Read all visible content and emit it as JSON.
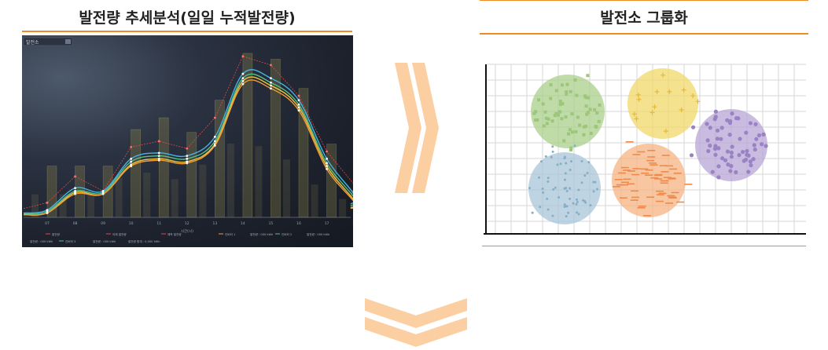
{
  "left_panel": {
    "title": "발전량 추세분석(일일 누적발전량)",
    "dashboard": {
      "selector_label": "발전소",
      "x_axis_label": "시간(시)",
      "x_ticks": [
        "07",
        "08",
        "09",
        "10",
        "11",
        "12",
        "13",
        "14",
        "15",
        "16",
        "17",
        "18"
      ],
      "legend_row1": [
        "발전량",
        "어제 발전량",
        "예측 발전량",
        "인버터 1",
        "발전량 : 000 kWh",
        "인버터 2",
        "발전량 : 000 kWh"
      ],
      "legend_row2": [
        "",
        "발전량 : 000 kWh",
        "인버터 3",
        "발전량 : 000 kWh",
        "발전량 합계 : 0,000 kWh"
      ]
    }
  },
  "right_panel": {
    "title": "발전소 그룹화"
  },
  "colors": {
    "accent_orange": "#f08a24",
    "arrow_fill": "#fccfa2",
    "cluster_green": "#a9cf8a",
    "cluster_yellow": "#f2d86a",
    "cluster_purple": "#b8a5d6",
    "cluster_blue": "#a9c6d8",
    "cluster_orange": "#f5b483"
  },
  "chart_data": [
    {
      "type": "line",
      "x": [
        "07",
        "08",
        "09",
        "10",
        "11",
        "12",
        "13",
        "14",
        "15",
        "16",
        "17",
        "18"
      ],
      "series": [
        {
          "values": [
            10,
            28,
            18,
            48,
            52,
            47,
            68,
            110,
            104,
            83,
            45,
            22
          ]
        },
        {
          "values": [
            5,
            20,
            18,
            40,
            44,
            42,
            55,
            98,
            95,
            80,
            40,
            15
          ]
        },
        {
          "values": [
            4,
            18,
            17,
            38,
            42,
            40,
            52,
            95,
            92,
            77,
            37,
            13
          ]
        },
        {
          "values": [
            3,
            17,
            16,
            36,
            40,
            38,
            50,
            93,
            90,
            75,
            35,
            11
          ]
        },
        {
          "values": [
            3,
            16,
            16,
            35,
            39,
            37,
            49,
            91,
            88,
            73,
            33,
            10
          ]
        }
      ],
      "bars": [
        35,
        35,
        35,
        60,
        68,
        58,
        80,
        112,
        108,
        88,
        50,
        28
      ]
    },
    {
      "type": "scatter",
      "groups": 5
    }
  ]
}
